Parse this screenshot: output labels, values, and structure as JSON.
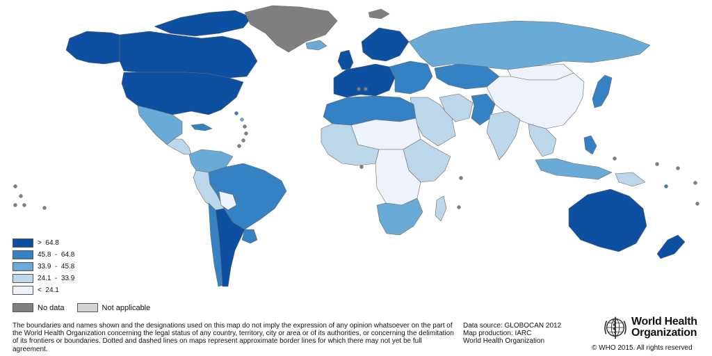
{
  "colors": {
    "ocean": "#ffffff",
    "border": "#6b6b6b",
    "class_1": "#0d4fa0",
    "class_2": "#3481c4",
    "class_3": "#6aaad6",
    "class_4": "#bcd6ea",
    "class_5": "#eef3fb",
    "no_data": "#7f7f7f",
    "not_applicable": "#d4d4d4"
  },
  "legend": {
    "classes": [
      {
        "label": ">  64.8",
        "color": "#0d4fa0"
      },
      {
        "label": "45.8  -  64.8",
        "color": "#3481c4"
      },
      {
        "label": "33.9  -  45.8",
        "color": "#6aaad6"
      },
      {
        "label": "24.1  -  33.9",
        "color": "#bcd6ea"
      },
      {
        "label": "<  24.1",
        "color": "#eef3fb"
      }
    ],
    "no_data": "No data",
    "not_applicable": "Not applicable"
  },
  "regions": [
    {
      "name": "canada",
      "class": 1
    },
    {
      "name": "alaska",
      "class": 1
    },
    {
      "name": "canadian-arctic-islands",
      "class": 1
    },
    {
      "name": "usa",
      "class": 1
    },
    {
      "name": "greenland",
      "class": "no_data"
    },
    {
      "name": "svalbard",
      "class": "no_data"
    },
    {
      "name": "mexico",
      "class": 3
    },
    {
      "name": "central-america",
      "class": 4
    },
    {
      "name": "cuba",
      "class": 2
    },
    {
      "name": "colombia-venezuela",
      "class": 3
    },
    {
      "name": "brazil",
      "class": 2
    },
    {
      "name": "peru-bolivia",
      "class": 4
    },
    {
      "name": "paraguay",
      "class": 5
    },
    {
      "name": "argentina",
      "class": 1
    },
    {
      "name": "chile",
      "class": 2
    },
    {
      "name": "uruguay",
      "class": 2
    },
    {
      "name": "iceland",
      "class": 3
    },
    {
      "name": "uk-ireland",
      "class": 1
    },
    {
      "name": "scandinavia",
      "class": 1
    },
    {
      "name": "western-europe",
      "class": 1
    },
    {
      "name": "eastern-europe",
      "class": 2
    },
    {
      "name": "russia",
      "class": 3
    },
    {
      "name": "kazakhstan",
      "class": 2
    },
    {
      "name": "mongolia",
      "class": 5
    },
    {
      "name": "china",
      "class": 5
    },
    {
      "name": "japan",
      "class": 2
    },
    {
      "name": "middle-east",
      "class": 4
    },
    {
      "name": "iran",
      "class": 4
    },
    {
      "name": "afghanistan-pakistan",
      "class": 2
    },
    {
      "name": "india",
      "class": 4
    },
    {
      "name": "southeast-asia",
      "class": 4
    },
    {
      "name": "indonesia",
      "class": 3
    },
    {
      "name": "philippines",
      "class": 2
    },
    {
      "name": "north-africa",
      "class": 2
    },
    {
      "name": "sahara",
      "class": 5
    },
    {
      "name": "west-africa",
      "class": 4
    },
    {
      "name": "central-africa",
      "class": 5
    },
    {
      "name": "east-africa",
      "class": 4
    },
    {
      "name": "southern-africa",
      "class": 3
    },
    {
      "name": "madagascar",
      "class": 4
    },
    {
      "name": "australia",
      "class": 1
    },
    {
      "name": "new-zealand",
      "class": 1
    },
    {
      "name": "papua-new-guinea",
      "class": 4
    }
  ],
  "footer": {
    "disclaimer": "The boundaries and names shown and the designations used on this map do not imply the expression of any opinion whatsoever on the part of the World Health Organization concerning the legal status of any country, territory, city or area or of its authorities, or concerning the delimitation of its frontiers or boundaries. Dotted and dashed lines on maps represent approximate border lines for which there may not yet be full agreement.",
    "data_source": "Data source: GLOBOCAN 2012",
    "map_production": "Map production: IARC",
    "organization": "World Health Organization",
    "logo_line1": "World Health",
    "logo_line2": "Organization",
    "copyright": "© WHO 2015. All rights reserved"
  }
}
